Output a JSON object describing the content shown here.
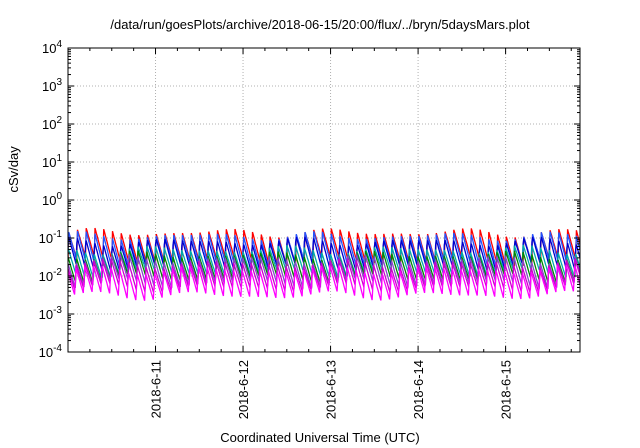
{
  "chart_data": {
    "type": "line",
    "title": "/data/run/goesPlots/archive/2018-06-15/20:00/flux/../bryn/5daysMars.plot",
    "xlabel": "Coordinated Universal Time (UTC)",
    "ylabel": "cSv/day",
    "yscale": "log",
    "ylim": [
      0.0001,
      10000
    ],
    "y_ticks": [
      {
        "base": "10",
        "exp": "-4"
      },
      {
        "base": "10",
        "exp": "-3"
      },
      {
        "base": "10",
        "exp": "-2"
      },
      {
        "base": "10",
        "exp": "-1"
      },
      {
        "base": "10",
        "exp": "0"
      },
      {
        "base": "10",
        "exp": "1"
      },
      {
        "base": "10",
        "exp": "2"
      },
      {
        "base": "10",
        "exp": "3"
      },
      {
        "base": "10",
        "exp": "4"
      }
    ],
    "x_range_days": [
      0,
      5.85
    ],
    "x_ticks": [
      {
        "label": "2018-6-11",
        "day": 1.0
      },
      {
        "label": "2018-6-12",
        "day": 2.0
      },
      {
        "label": "2018-6-13",
        "day": 3.0
      },
      {
        "label": "2018-6-14",
        "day": 4.0
      },
      {
        "label": "2018-6-15",
        "day": 5.0
      }
    ],
    "grid": true,
    "oscillation_periods_per_day": 10,
    "series": [
      {
        "color": "#ff0000",
        "peak": 0.14,
        "trough": 0.024
      },
      {
        "color": "#2255ff",
        "peak": 0.12,
        "trough": 0.02
      },
      {
        "color": "#0000cc",
        "peak": 0.09,
        "trough": 0.016
      },
      {
        "color": "#00aaaa",
        "peak": 0.05,
        "trough": 0.011
      },
      {
        "color": "#008800",
        "peak": 0.038,
        "trough": 0.008
      },
      {
        "color": "#8844cc",
        "peak": 0.03,
        "trough": 0.006
      },
      {
        "color": "#cc00cc",
        "peak": 0.022,
        "trough": 0.0045
      },
      {
        "color": "#ff00ff",
        "peak": 0.016,
        "trough": 0.0028
      }
    ]
  }
}
